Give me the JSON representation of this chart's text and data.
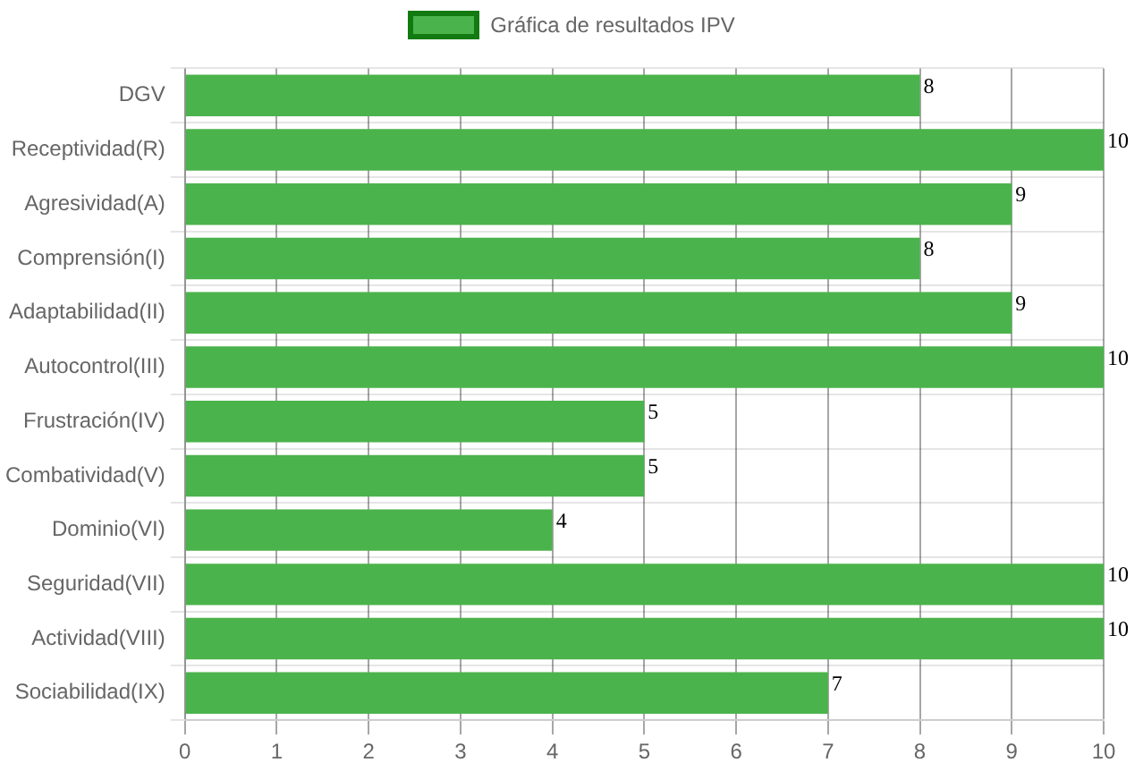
{
  "chart_data": {
    "type": "bar",
    "orientation": "horizontal",
    "categories": [
      "DGV",
      "Receptividad(R)",
      "Agresividad(A)",
      "Comprensión(I)",
      "Adaptabilidad(II)",
      "Autocontrol(III)",
      "Frustración(IV)",
      "Combatividad(V)",
      "Dominio(VI)",
      "Seguridad(VII)",
      "Actividad(VIII)",
      "Sociabilidad(IX)"
    ],
    "series": [
      {
        "name": "Gráfica de resultados IPV",
        "color": "#4bb34b",
        "values": [
          8,
          10,
          9,
          8,
          9,
          10,
          5,
          5,
          4,
          10,
          10,
          7
        ]
      }
    ],
    "xlim": [
      0,
      10
    ],
    "xticks": [
      0,
      1,
      2,
      3,
      4,
      5,
      6,
      7,
      8,
      9,
      10
    ],
    "grid": true,
    "legend": "top",
    "data_labels": true
  }
}
